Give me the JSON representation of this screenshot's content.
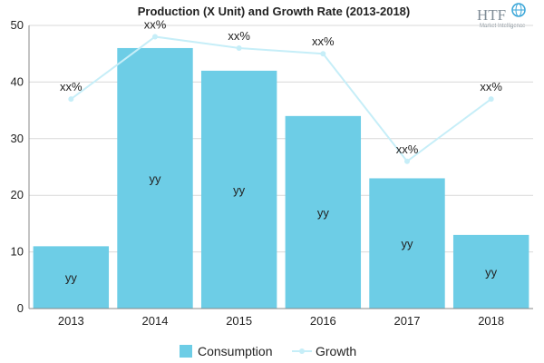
{
  "chart_data": {
    "type": "bar",
    "title": "Production (X Unit) and Growth Rate (2013-2018)",
    "categories": [
      "2013",
      "2014",
      "2015",
      "2016",
      "2017",
      "2018"
    ],
    "ylim": [
      0,
      50
    ],
    "yticks": [
      "0",
      "10",
      "20",
      "30",
      "40",
      "50"
    ],
    "grid": true,
    "legend_position": "bottom",
    "series": [
      {
        "name": "Consumption",
        "type": "bar",
        "color": "#6dcde6",
        "values": [
          11,
          46,
          42,
          34,
          23,
          13
        ],
        "data_labels": [
          "yy",
          "yy",
          "yy",
          "yy",
          "yy",
          "yy"
        ]
      },
      {
        "name": "Growth",
        "type": "line",
        "color": "#c6eef8",
        "values": [
          37,
          48,
          46,
          45,
          26,
          37
        ],
        "data_labels": [
          "xx%",
          "xx%",
          "xx%",
          "xx%",
          "xx%",
          "xx%"
        ]
      }
    ]
  },
  "logo": {
    "text": "HTF",
    "subtext": "Market Intelligence",
    "icon": "globe-icon"
  }
}
